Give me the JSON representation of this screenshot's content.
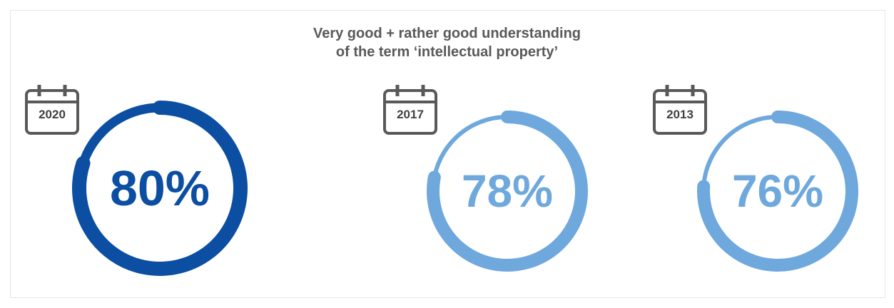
{
  "title_lines": [
    "Very good + rather good understanding",
    "of the term ‘intellectual  property’"
  ],
  "colors": {
    "primary": "#0b4ea2",
    "secondary": "#6fa8dc",
    "track": "#6fa8dc",
    "icon": "#595959"
  },
  "icons": [
    "calendar-icon"
  ],
  "chart_data": {
    "type": "gauge",
    "title": "Very good + rather good understanding of the term ‘intellectual  property’",
    "categories": [
      "2020",
      "2017",
      "2013"
    ],
    "values": [
      80,
      78,
      76
    ],
    "unit": "%",
    "labels": [
      "80%",
      "78%",
      "76%"
    ]
  }
}
